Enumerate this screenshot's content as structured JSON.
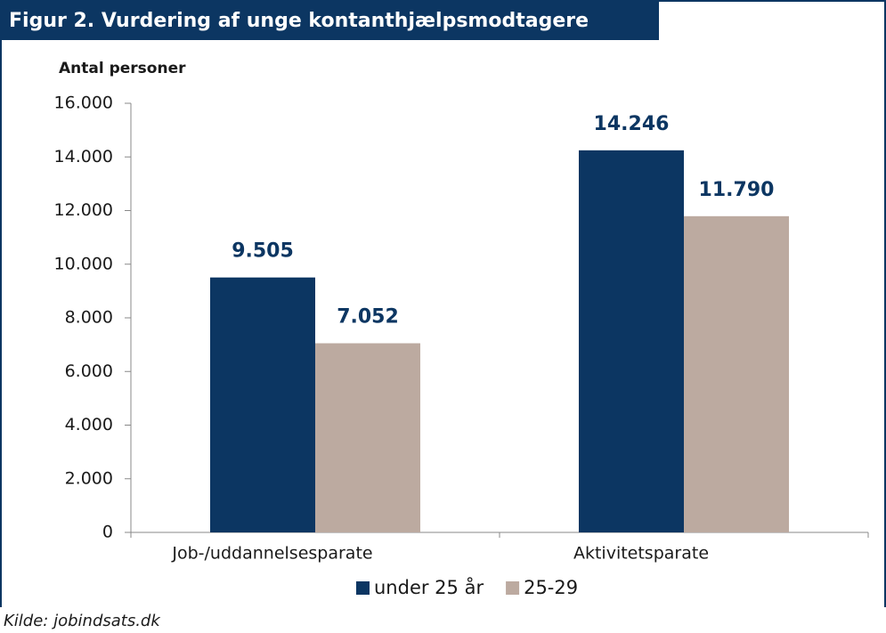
{
  "chart_data": {
    "type": "bar",
    "title": "Figur 2. Vurdering af unge kontanthjælpsmodtagere",
    "y_axis_label": "Antal personer",
    "categories": [
      "Job-/uddannelsesparate",
      "Aktivitetsparate"
    ],
    "series": [
      {
        "name": "under 25 år",
        "color": "#0c3662",
        "values": [
          9505,
          14246
        ],
        "value_labels": [
          "9.505",
          "14.246"
        ]
      },
      {
        "name": "25-29",
        "color": "#bcaaa0",
        "values": [
          7052,
          11790
        ],
        "value_labels": [
          "7.052",
          "11.790"
        ]
      }
    ],
    "ylim": [
      0,
      16000
    ],
    "yticks": [
      0,
      {
        "value": 2000,
        "label": "2.000"
      },
      {
        "value": 4000,
        "label": "4.000"
      },
      {
        "value": 6000,
        "label": "6.000"
      },
      {
        "value": 8000,
        "label": "8.000"
      },
      {
        "value": 10000,
        "label": "10.000"
      },
      {
        "value": 12000,
        "label": "12.000"
      },
      {
        "value": 14000,
        "label": "14.000"
      },
      {
        "value": 16000,
        "label": "16.000"
      }
    ],
    "grid": false,
    "legend": "bottom",
    "source": "Kilde: jobindsats.dk"
  }
}
